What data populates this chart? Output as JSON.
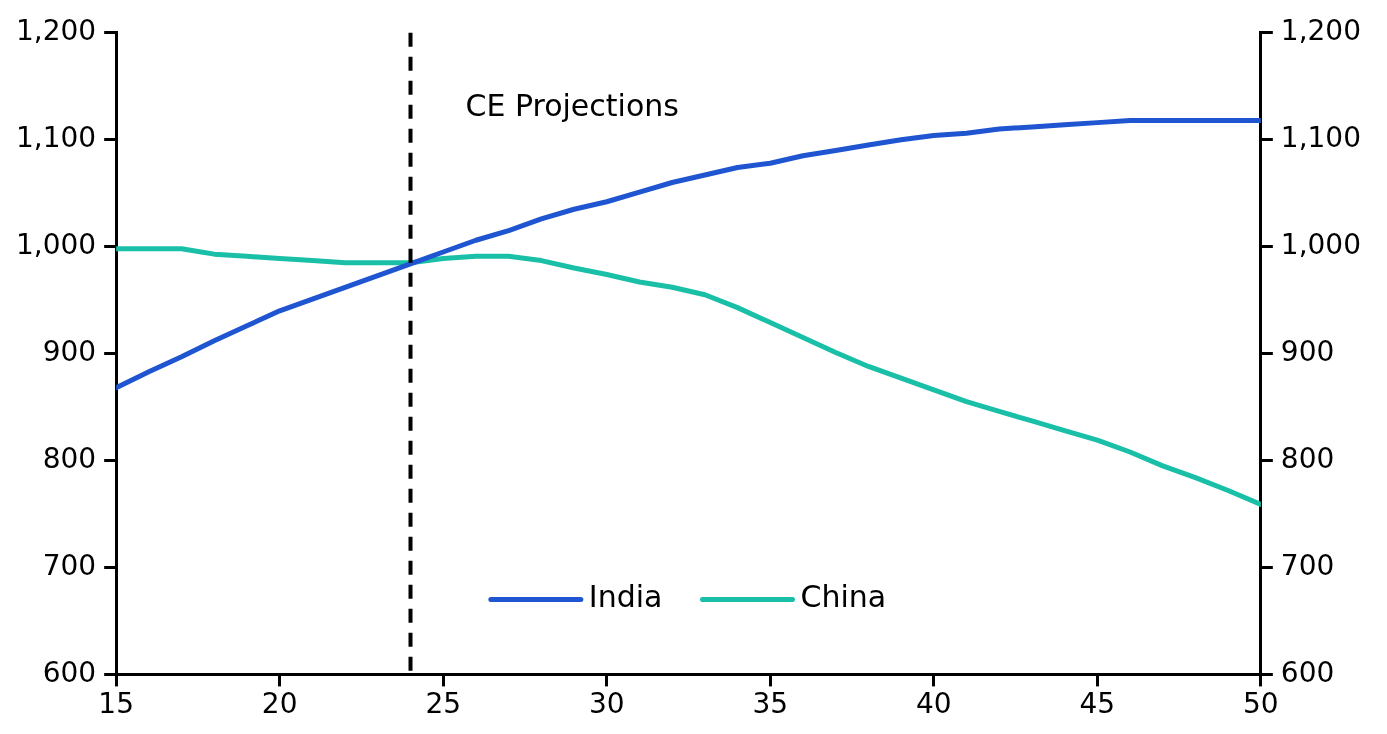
{
  "chart_data": {
    "type": "line",
    "x": [
      15,
      16,
      17,
      18,
      19,
      20,
      21,
      22,
      23,
      24,
      25,
      26,
      27,
      28,
      29,
      30,
      31,
      32,
      33,
      34,
      35,
      36,
      37,
      38,
      39,
      40,
      41,
      42,
      43,
      44,
      45,
      46,
      47,
      48,
      49,
      50
    ],
    "series": [
      {
        "name": "India",
        "color": "#1f55d0",
        "values": [
          868,
          883,
          897,
          912,
          926,
          940,
          951,
          962,
          973,
          984,
          995,
          1006,
          1015,
          1026,
          1035,
          1042,
          1051,
          1060,
          1067,
          1074,
          1078,
          1085,
          1090,
          1095,
          1100,
          1104,
          1106,
          1110,
          1112,
          1114,
          1116,
          1118,
          1118,
          1118,
          1118,
          1118
        ]
      },
      {
        "name": "China",
        "color": "#1abfa8",
        "values": [
          998,
          998,
          998,
          993,
          991,
          989,
          987,
          985,
          985,
          985,
          989,
          991,
          991,
          987,
          980,
          974,
          967,
          962,
          955,
          943,
          929,
          915,
          901,
          888,
          877,
          866,
          855,
          846,
          837,
          828,
          819,
          808,
          795,
          784,
          772,
          759
        ]
      }
    ],
    "xlim": [
      15,
      50
    ],
    "xticks": [
      15,
      20,
      25,
      30,
      35,
      40,
      45,
      50
    ],
    "ylim": [
      600,
      1200
    ],
    "yticks": [
      {
        "value": 600,
        "label": "600"
      },
      {
        "value": 700,
        "label": "700"
      },
      {
        "value": 800,
        "label": "800"
      },
      {
        "value": 900,
        "label": "900"
      },
      {
        "value": 1000,
        "label": "1,000"
      },
      {
        "value": 1100,
        "label": "1,100"
      },
      {
        "value": 1200,
        "label": "1,200"
      }
    ],
    "y2lim": [
      600,
      1200
    ],
    "y2ticks": [
      {
        "value": 600,
        "label": "600"
      },
      {
        "value": 700,
        "label": "700"
      },
      {
        "value": 800,
        "label": "800"
      },
      {
        "value": 900,
        "label": "900"
      },
      {
        "value": 1000,
        "label": "1,000"
      },
      {
        "value": 1100,
        "label": "1,100"
      },
      {
        "value": 1200,
        "label": "1,200"
      }
    ],
    "ref_lines": [
      {
        "axis": "x",
        "value": 24,
        "label": "CE Projections",
        "color": "#000000",
        "line_style": "dashed"
      }
    ],
    "legend": "bottom",
    "grid": false,
    "marker": "none",
    "line_style": "solid"
  }
}
